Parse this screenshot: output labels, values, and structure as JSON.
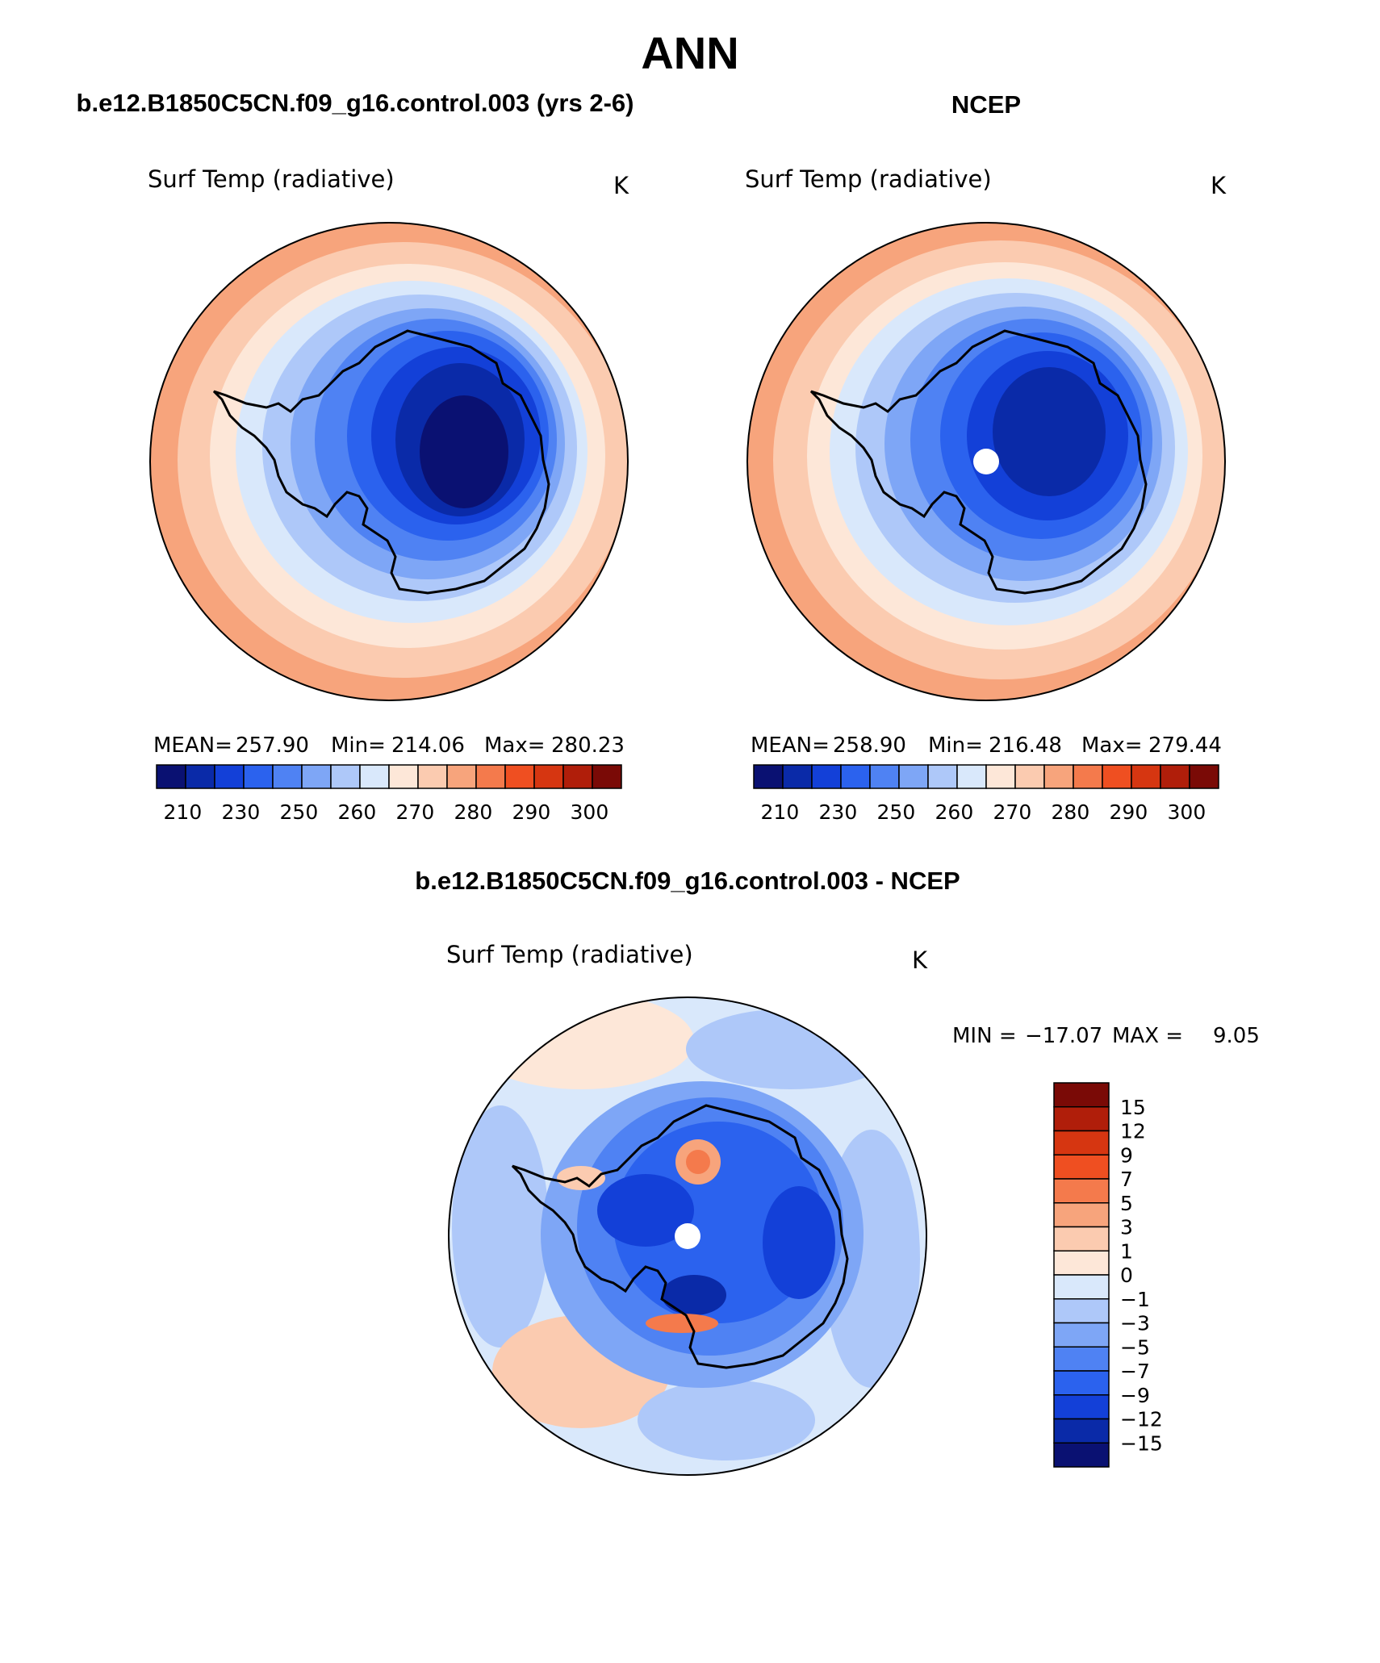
{
  "page_title": "ANN",
  "palettes": {
    "abs": [
      "#0a1172",
      "#0a2aa8",
      "#1340d8",
      "#2b62ee",
      "#4f82f3",
      "#7ea6f6",
      "#aec8f9",
      "#d9e8fb",
      "#fde7d8",
      "#fbcbb0",
      "#f7a47c",
      "#f47a4c",
      "#ef4f21",
      "#d63611",
      "#b01e0a",
      "#7a0a06"
    ],
    "diff": [
      "#0a1172",
      "#0a2aa8",
      "#1340d8",
      "#2b62ee",
      "#4f82f3",
      "#7ea6f6",
      "#aec8f9",
      "#d9e8fb",
      "#fde7d8",
      "#fbcbb0",
      "#f7a47c",
      "#f47a4c",
      "#ef4f21",
      "#d63611",
      "#b01e0a",
      "#7a0a06"
    ]
  },
  "panels": {
    "model": {
      "header": "b.e12.B1850C5CN.f09_g16.control.003 (yrs 2-6)",
      "variable": "Surf Temp (radiative)",
      "units": "K",
      "stats": {
        "mean_label": "MEAN=",
        "mean": "257.90",
        "min_label": "Min=",
        "min": "214.06",
        "max_label": "Max=",
        "max": "280.23"
      },
      "colorbar_ticks": [
        "210",
        "230",
        "250",
        "260",
        "270",
        "280",
        "290",
        "300"
      ]
    },
    "obs": {
      "header": "NCEP",
      "variable": "Surf Temp (radiative)",
      "units": "K",
      "stats": {
        "mean_label": "MEAN=",
        "mean": "258.90",
        "min_label": "Min=",
        "min": "216.48",
        "max_label": "Max=",
        "max": "279.44"
      },
      "colorbar_ticks": [
        "210",
        "230",
        "250",
        "260",
        "270",
        "280",
        "290",
        "300"
      ]
    },
    "diff": {
      "header": "b.e12.B1850C5CN.f09_g16.control.003 - NCEP",
      "variable": "Surf Temp (radiative)",
      "units": "K",
      "minmax": {
        "min_label": "MIN =",
        "min": "−17.07",
        "max_label": "MAX =",
        "max": "9.05"
      },
      "colorbar_ticks": [
        "15",
        "12",
        "9",
        "7",
        "5",
        "3",
        "1",
        "0",
        "−1",
        "−3",
        "−5",
        "−7",
        "−9",
        "−12",
        "−15"
      ]
    }
  }
}
